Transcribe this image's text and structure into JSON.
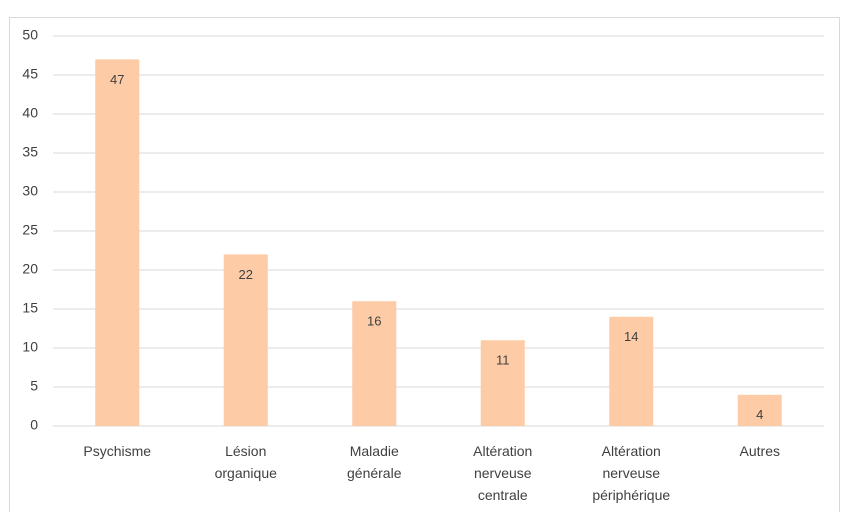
{
  "chart_data": {
    "type": "bar",
    "categories": [
      "Psychisme",
      "Lésion organique",
      "Maladie générale",
      "Altération nerveuse centrale",
      "Altération nerveuse périphérique",
      "Autres"
    ],
    "values": [
      47,
      22,
      16,
      11,
      14,
      4
    ],
    "color": "#fdcca6",
    "ylim": [
      0,
      50
    ],
    "yticks": [
      0,
      5,
      10,
      15,
      20,
      25,
      30,
      35,
      40,
      45,
      50
    ],
    "grid": true
  }
}
